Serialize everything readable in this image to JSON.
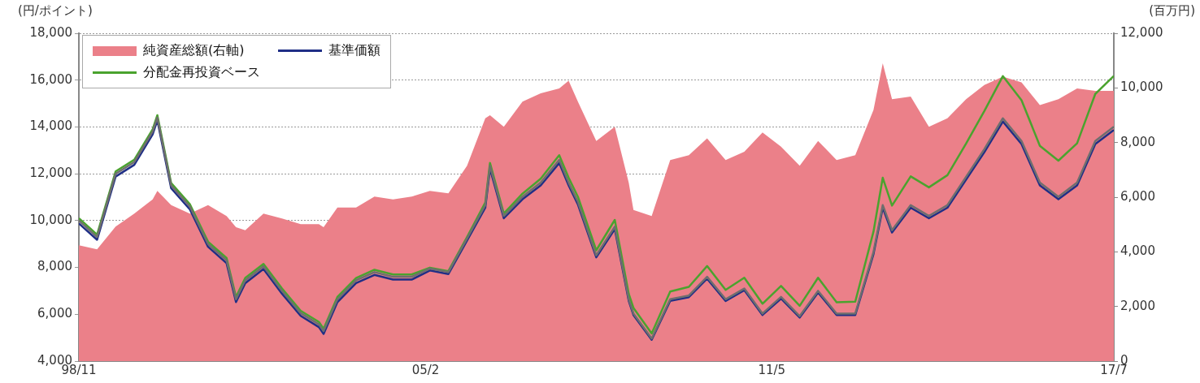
{
  "chart_data": {
    "type": "line",
    "ylabel": "(円/ポイント)",
    "y2label": "(百万円)",
    "x": [
      "1998-11",
      "1999-03",
      "1999-07",
      "1999-11",
      "2000-03",
      "2000-04",
      "2000-07",
      "2000-11",
      "2001-03",
      "2001-07",
      "2001-09",
      "2001-11",
      "2002-03",
      "2002-07",
      "2002-11",
      "2003-03",
      "2003-04",
      "2003-07",
      "2003-11",
      "2004-03",
      "2004-07",
      "2004-11",
      "2005-03",
      "2005-07",
      "2005-11",
      "2006-03",
      "2006-04",
      "2006-07",
      "2006-11",
      "2007-03",
      "2007-07",
      "2007-09",
      "2007-11",
      "2008-03",
      "2008-07",
      "2008-10",
      "2008-11",
      "2009-03",
      "2009-07",
      "2009-11",
      "2010-03",
      "2010-07",
      "2010-11",
      "2011-03",
      "2011-07",
      "2011-11",
      "2012-03",
      "2012-07",
      "2012-11",
      "2013-03",
      "2013-05",
      "2013-07",
      "2013-11",
      "2014-03",
      "2014-07",
      "2014-11",
      "2015-03",
      "2015-07",
      "2015-11",
      "2016-03",
      "2016-07",
      "2016-11",
      "2017-03",
      "2017-07"
    ],
    "series": [
      {
        "name": "純資産総額(右軸)",
        "type": "area",
        "axis": "y2",
        "color": "#eb8089",
        "values": [
          4240,
          4090,
          4920,
          5400,
          5920,
          6230,
          5710,
          5400,
          5710,
          5310,
          4900,
          4790,
          5400,
          5220,
          5010,
          5010,
          4900,
          5620,
          5620,
          6020,
          5920,
          6020,
          6230,
          6140,
          7150,
          8890,
          9000,
          8580,
          9500,
          9800,
          9980,
          10260,
          9500,
          8060,
          8580,
          6530,
          5530,
          5310,
          7360,
          7540,
          8150,
          7360,
          7660,
          8370,
          7850,
          7150,
          8060,
          7360,
          7540,
          9190,
          10900,
          9590,
          9680,
          8580,
          8890,
          9590,
          10110,
          10410,
          10200,
          9370,
          9590,
          9980,
          9890,
          9890
        ]
      },
      {
        "name": "基準価額",
        "color": "#1f2e86",
        "values": [
          9880,
          9180,
          11880,
          12380,
          13680,
          14280,
          11380,
          10480,
          8880,
          8180,
          6520,
          7330,
          7930,
          6880,
          5930,
          5450,
          5160,
          6520,
          7330,
          7680,
          7480,
          7480,
          7870,
          7720,
          9150,
          10550,
          12220,
          10100,
          10910,
          11500,
          12460,
          11500,
          10690,
          8430,
          9640,
          6570,
          5970,
          4910,
          6570,
          6730,
          7520,
          6570,
          7030,
          5970,
          6670,
          5860,
          6930,
          5970,
          5970,
          8570,
          10550,
          9490,
          10550,
          10100,
          10550,
          11750,
          12920,
          14230,
          13270,
          11500,
          10910,
          11500,
          13270,
          13870
        ]
      },
      {
        "name": "分配金再投資ベース",
        "color": "#4aa32e",
        "values": [
          10100,
          9400,
          12100,
          12600,
          13900,
          14500,
          11600,
          10700,
          9100,
          8400,
          6740,
          7550,
          8150,
          7100,
          6150,
          5670,
          5380,
          6740,
          7550,
          7900,
          7700,
          7700,
          7990,
          7840,
          9300,
          10770,
          12460,
          10300,
          11150,
          11790,
          12790,
          11830,
          11020,
          8730,
          10030,
          6870,
          6270,
          5180,
          6970,
          7170,
          8060,
          7040,
          7560,
          6450,
          7210,
          6360,
          7560,
          6510,
          6540,
          9530,
          11830,
          10640,
          11890,
          11420,
          11940,
          13290,
          14680,
          16170,
          15140,
          13190,
          12560,
          13300,
          15410,
          16180
        ]
      },
      {
        "color": "#6e6e6e",
        "values": [
          10000,
          9300,
          12000,
          12500,
          13800,
          14400,
          11500,
          10600,
          9000,
          8300,
          6640,
          7450,
          8050,
          7000,
          6050,
          5570,
          5280,
          6640,
          7450,
          7800,
          7600,
          7600,
          7950,
          7800,
          9240,
          10660,
          12340,
          10200,
          11020,
          11620,
          12590,
          11620,
          10800,
          8520,
          9740,
          6640,
          6030,
          4960,
          6640,
          6800,
          7600,
          6640,
          7100,
          6030,
          6740,
          5920,
          7000,
          6030,
          6030,
          8660,
          10660,
          9590,
          10660,
          10200,
          10660,
          11870,
          13050,
          14370,
          13400,
          11620,
          11020,
          11620,
          13400,
          14010
        ]
      }
    ],
    "xlim": [
      "1998-11",
      "2017-07"
    ],
    "xticks": [
      {
        "value": "1998-11",
        "label": "98/11"
      },
      {
        "value": "2005-02",
        "label": "05/2"
      },
      {
        "value": "2011-05",
        "label": "11/5"
      },
      {
        "value": "2017-07",
        "label": "17/7"
      }
    ],
    "ylim": [
      4000,
      18000
    ],
    "yticks": [
      {
        "value": 4000,
        "label": "4,000"
      },
      {
        "value": 6000,
        "label": "6,000"
      },
      {
        "value": 8000,
        "label": "8,000"
      },
      {
        "value": 10000,
        "label": "10,000"
      },
      {
        "value": 12000,
        "label": "12,000"
      },
      {
        "value": 14000,
        "label": "14,000"
      },
      {
        "value": 16000,
        "label": "16,000"
      },
      {
        "value": 18000,
        "label": "18,000"
      }
    ],
    "y2lim": [
      0,
      12000
    ],
    "y2ticks": [
      0,
      {
        "value": 2000,
        "label": "2,000"
      },
      {
        "value": 4000,
        "label": "4,000"
      },
      {
        "value": 6000,
        "label": "6,000"
      },
      {
        "value": 8000,
        "label": "8,000"
      },
      {
        "value": 10000,
        "label": "10,000"
      },
      {
        "value": 12000,
        "label": "12,000"
      }
    ],
    "grid": "y",
    "legend": "top left",
    "marker": "none",
    "line_style": "solid"
  }
}
